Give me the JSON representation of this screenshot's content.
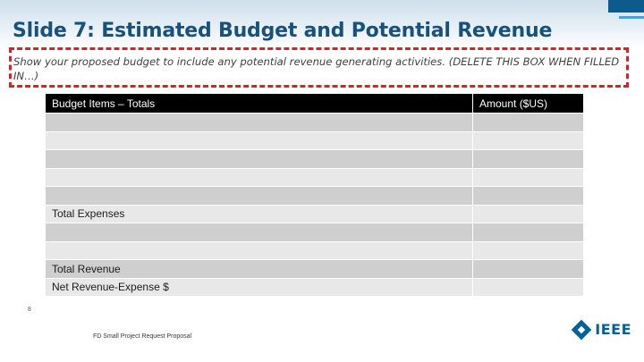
{
  "slide": {
    "title": "Slide 7: Estimated Budget and Potential Revenue",
    "instruction": "Show your proposed budget to include any potential revenue generating activities. (DELETE THIS BOX WHEN FILLED IN…)",
    "page_number": "8"
  },
  "table": {
    "headers": [
      "Budget Items – Totals",
      "Amount ($US)"
    ],
    "rows": [
      [
        "",
        ""
      ],
      [
        "",
        ""
      ],
      [
        "",
        ""
      ],
      [
        "",
        ""
      ],
      [
        "",
        ""
      ],
      [
        "Total Expenses",
        ""
      ],
      [
        "",
        ""
      ],
      [
        "",
        ""
      ],
      [
        "Total Revenue",
        ""
      ],
      [
        "Net Revenue-Expense $",
        ""
      ]
    ]
  },
  "footer": {
    "text": "FD Small Project Request Proposal",
    "logo_text": "IEEE"
  },
  "colors": {
    "title": "#17527f",
    "dashed_border": "#d5222b",
    "header_bg": "#000000",
    "row_dark": "#cfcfcf",
    "row_light": "#e8e8e8",
    "brand": "#00629b"
  }
}
